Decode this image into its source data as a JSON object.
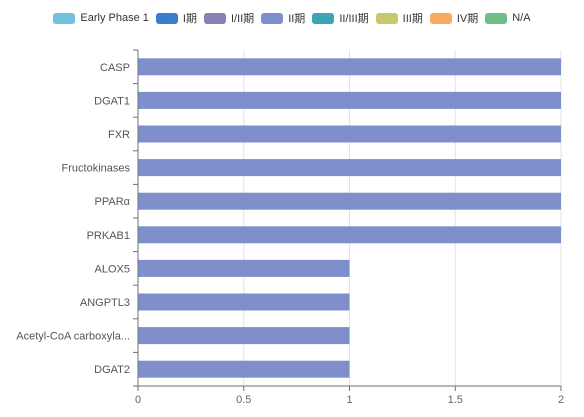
{
  "legend": [
    {
      "label": "Early Phase 1",
      "color": "#73c0de"
    },
    {
      "label": "I期",
      "color": "#3a7ecb"
    },
    {
      "label": "I/II期",
      "color": "#8a7fb3"
    },
    {
      "label": "II期",
      "color": "#7f8fcb"
    },
    {
      "label": "II/III期",
      "color": "#3ba5b2"
    },
    {
      "label": "III期",
      "color": "#c7c96a"
    },
    {
      "label": "IV期",
      "color": "#fba860"
    },
    {
      "label": "N/A",
      "color": "#6fbe8a"
    }
  ],
  "chart_data": {
    "type": "bar",
    "orientation": "horizontal",
    "stacked": true,
    "categories": [
      "CASP",
      "DGAT1",
      "FXR",
      "Fructokinases",
      "PPARα",
      "PRKAB1",
      "ALOX5",
      "ANGPTL3",
      "Acetyl-CoA carboxyla...",
      "DGAT2"
    ],
    "series": [
      {
        "name": "II期",
        "color": "#7f8fcb",
        "values": [
          2,
          2,
          2,
          2,
          2,
          2,
          1,
          1,
          1,
          1
        ]
      }
    ],
    "xlim": [
      0,
      2
    ],
    "xticks": [
      "0",
      "0.5",
      "1",
      "1.5",
      "2"
    ],
    "grid": true,
    "legend_position": "top"
  }
}
